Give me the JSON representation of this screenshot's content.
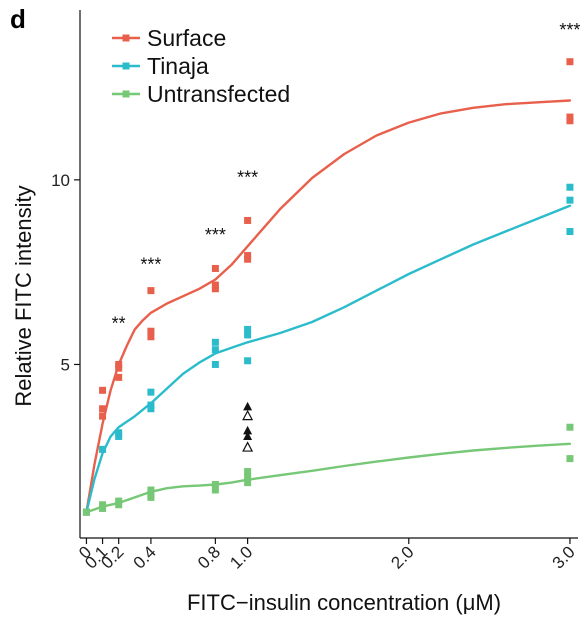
{
  "panel_label": "d",
  "chart_data": {
    "type": "scatter",
    "xlabel": "FITC−insulin concentration (μM)",
    "ylabel": "Relative FITC intensity",
    "xlim": [
      -0.04,
      3.05
    ],
    "ylim": [
      0.3,
      14.6
    ],
    "x_ticks": [
      0,
      0.1,
      0.2,
      0.4,
      0.8,
      1.0,
      2.0,
      3.0
    ],
    "x_tick_labels": [
      "0",
      "0.1",
      "0.2",
      "0.4",
      "0.8",
      "1.0",
      "2.0",
      "3.0"
    ],
    "y_ticks": [
      5,
      10
    ],
    "y_tick_labels": [
      "5",
      "10"
    ],
    "grid": false,
    "legend_position": "top-left",
    "series": [
      {
        "name": "Surface",
        "color": "#e8604c",
        "points": [
          {
            "x": 0,
            "y": 1.0
          },
          {
            "x": 0.1,
            "y": 3.6
          },
          {
            "x": 0.1,
            "y": 3.8
          },
          {
            "x": 0.1,
            "y": 4.3
          },
          {
            "x": 0.2,
            "y": 4.65
          },
          {
            "x": 0.2,
            "y": 4.9
          },
          {
            "x": 0.2,
            "y": 5.0
          },
          {
            "x": 0.4,
            "y": 5.75
          },
          {
            "x": 0.4,
            "y": 5.9
          },
          {
            "x": 0.4,
            "y": 7.0
          },
          {
            "x": 0.8,
            "y": 7.05
          },
          {
            "x": 0.8,
            "y": 7.15
          },
          {
            "x": 0.8,
            "y": 7.6
          },
          {
            "x": 1.0,
            "y": 7.85
          },
          {
            "x": 1.0,
            "y": 7.95
          },
          {
            "x": 1.0,
            "y": 8.9
          },
          {
            "x": 3.0,
            "y": 11.6
          },
          {
            "x": 3.0,
            "y": 11.7
          },
          {
            "x": 3.0,
            "y": 13.2
          }
        ],
        "fit": [
          [
            0,
            1.0
          ],
          [
            0.05,
            2.3
          ],
          [
            0.1,
            3.4
          ],
          [
            0.15,
            4.3
          ],
          [
            0.2,
            5.0
          ],
          [
            0.25,
            5.5
          ],
          [
            0.3,
            5.95
          ],
          [
            0.35,
            6.2
          ],
          [
            0.4,
            6.4
          ],
          [
            0.5,
            6.65
          ],
          [
            0.6,
            6.85
          ],
          [
            0.7,
            7.05
          ],
          [
            0.8,
            7.3
          ],
          [
            0.9,
            7.7
          ],
          [
            1.0,
            8.2
          ],
          [
            1.2,
            9.2
          ],
          [
            1.4,
            10.05
          ],
          [
            1.6,
            10.7
          ],
          [
            1.8,
            11.2
          ],
          [
            2.0,
            11.55
          ],
          [
            2.2,
            11.8
          ],
          [
            2.4,
            11.95
          ],
          [
            2.6,
            12.05
          ],
          [
            2.8,
            12.1
          ],
          [
            3.0,
            12.15
          ]
        ]
      },
      {
        "name": "Tinaja",
        "color": "#2bbccc",
        "points": [
          {
            "x": 0,
            "y": 1.0
          },
          {
            "x": 0.1,
            "y": 2.7
          },
          {
            "x": 0.2,
            "y": 3.05
          },
          {
            "x": 0.2,
            "y": 3.15
          },
          {
            "x": 0.4,
            "y": 3.8
          },
          {
            "x": 0.4,
            "y": 3.9
          },
          {
            "x": 0.4,
            "y": 4.25
          },
          {
            "x": 0.8,
            "y": 5.0
          },
          {
            "x": 0.8,
            "y": 5.4
          },
          {
            "x": 0.8,
            "y": 5.6
          },
          {
            "x": 1.0,
            "y": 5.1
          },
          {
            "x": 1.0,
            "y": 5.8
          },
          {
            "x": 1.0,
            "y": 5.95
          },
          {
            "x": 3.0,
            "y": 8.6
          },
          {
            "x": 3.0,
            "y": 9.45
          },
          {
            "x": 3.0,
            "y": 9.8
          }
        ],
        "fit": [
          [
            0,
            1.0
          ],
          [
            0.05,
            1.9
          ],
          [
            0.1,
            2.6
          ],
          [
            0.15,
            3.05
          ],
          [
            0.2,
            3.3
          ],
          [
            0.3,
            3.6
          ],
          [
            0.4,
            3.95
          ],
          [
            0.5,
            4.35
          ],
          [
            0.6,
            4.75
          ],
          [
            0.7,
            5.05
          ],
          [
            0.8,
            5.3
          ],
          [
            0.9,
            5.45
          ],
          [
            1.0,
            5.6
          ],
          [
            1.2,
            5.85
          ],
          [
            1.4,
            6.15
          ],
          [
            1.6,
            6.55
          ],
          [
            1.8,
            7.0
          ],
          [
            2.0,
            7.45
          ],
          [
            2.2,
            7.85
          ],
          [
            2.4,
            8.25
          ],
          [
            2.6,
            8.6
          ],
          [
            2.8,
            8.95
          ],
          [
            3.0,
            9.3
          ]
        ]
      },
      {
        "name": "Untransfected",
        "color": "#76c776",
        "points": [
          {
            "x": 0,
            "y": 1.0
          },
          {
            "x": 0.1,
            "y": 1.1
          },
          {
            "x": 0.1,
            "y": 1.2
          },
          {
            "x": 0.2,
            "y": 1.2
          },
          {
            "x": 0.2,
            "y": 1.3
          },
          {
            "x": 0.4,
            "y": 1.4
          },
          {
            "x": 0.4,
            "y": 1.5
          },
          {
            "x": 0.4,
            "y": 1.6
          },
          {
            "x": 0.8,
            "y": 1.6
          },
          {
            "x": 0.8,
            "y": 1.75
          },
          {
            "x": 1.0,
            "y": 1.8
          },
          {
            "x": 1.0,
            "y": 1.95
          },
          {
            "x": 1.0,
            "y": 2.1
          },
          {
            "x": 3.0,
            "y": 2.45
          },
          {
            "x": 3.0,
            "y": 3.3
          }
        ],
        "fit": [
          [
            0,
            1.0
          ],
          [
            0.1,
            1.15
          ],
          [
            0.2,
            1.25
          ],
          [
            0.3,
            1.4
          ],
          [
            0.4,
            1.55
          ],
          [
            0.5,
            1.65
          ],
          [
            0.6,
            1.7
          ],
          [
            0.7,
            1.72
          ],
          [
            0.8,
            1.75
          ],
          [
            0.9,
            1.8
          ],
          [
            1.0,
            1.88
          ],
          [
            1.2,
            2.0
          ],
          [
            1.4,
            2.12
          ],
          [
            1.6,
            2.25
          ],
          [
            1.8,
            2.37
          ],
          [
            2.0,
            2.48
          ],
          [
            2.2,
            2.58
          ],
          [
            2.4,
            2.67
          ],
          [
            2.6,
            2.74
          ],
          [
            2.8,
            2.8
          ],
          [
            3.0,
            2.85
          ]
        ]
      }
    ],
    "extra_markers": {
      "color": "#111111",
      "filled": [
        {
          "x": 1.0,
          "y": 3.85
        },
        {
          "x": 1.0,
          "y": 3.2
        },
        {
          "x": 1.0,
          "y": 3.05
        }
      ],
      "open": [
        {
          "x": 1.0,
          "y": 3.6
        },
        {
          "x": 1.0,
          "y": 2.75
        }
      ]
    },
    "annotations": [
      {
        "text": "**",
        "x": 0.2,
        "y": 5.95
      },
      {
        "text": "***",
        "x": 0.4,
        "y": 7.55
      },
      {
        "text": "***",
        "x": 0.8,
        "y": 8.35
      },
      {
        "text": "***",
        "x": 1.0,
        "y": 9.9
      },
      {
        "text": "***",
        "x": 3.0,
        "y": 13.9
      }
    ]
  }
}
